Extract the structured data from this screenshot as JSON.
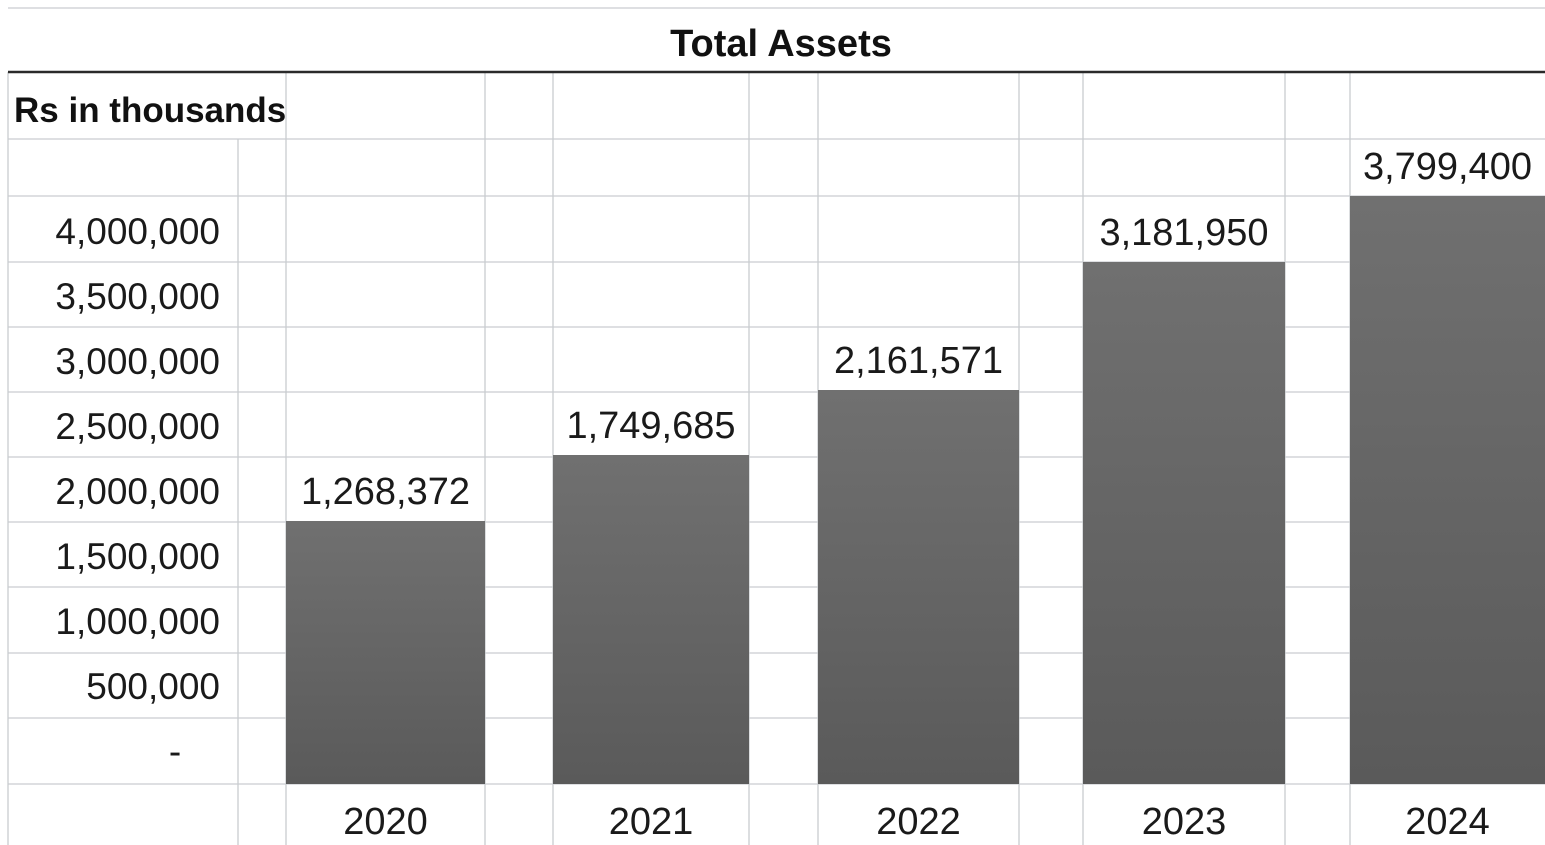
{
  "chart_data": {
    "type": "bar",
    "title": "Total Assets",
    "ylabel": "Rs in thousands",
    "xlabel": "",
    "categories": [
      "2020",
      "2021",
      "2022",
      "2023",
      "2024"
    ],
    "values": [
      1268372,
      1749685,
      2161571,
      3181950,
      3799400
    ],
    "data_labels": [
      "1,268,372",
      "1,749,685",
      "2,161,571",
      "3,181,950",
      "3,799,400"
    ],
    "y_ticks": [
      0,
      500000,
      1000000,
      1500000,
      2000000,
      2500000,
      3000000,
      3500000,
      4000000
    ],
    "y_tick_labels": [
      "-",
      "500,000",
      "1,000,000",
      "1,500,000",
      "2,000,000",
      "2,500,000",
      "3,000,000",
      "3,500,000",
      "4,000,000"
    ],
    "ylim": [
      0,
      4000000
    ],
    "grid": true,
    "legend": "none",
    "bar_color": "#6b6b6b"
  }
}
